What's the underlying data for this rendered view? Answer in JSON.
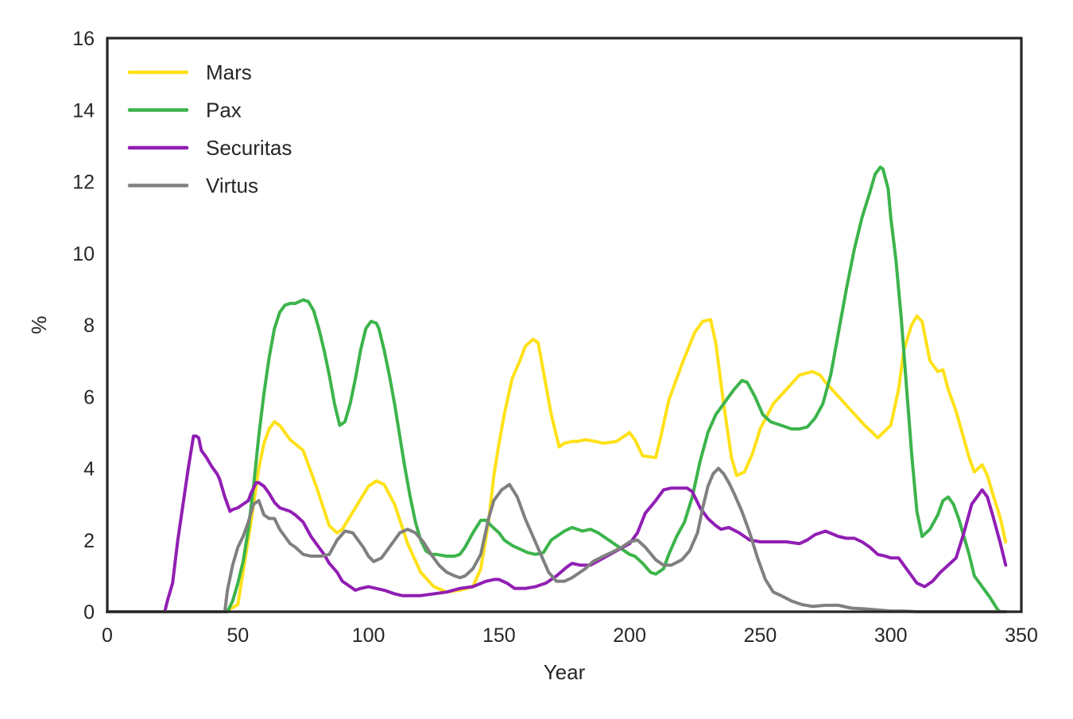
{
  "chart_data": {
    "type": "line",
    "title": "",
    "xlabel": "Year",
    "ylabel": "%",
    "xlim": [
      0,
      350
    ],
    "ylim": [
      0,
      16
    ],
    "xticks": [
      0,
      50,
      100,
      150,
      200,
      250,
      300,
      350
    ],
    "yticks": [
      0,
      2,
      4,
      6,
      8,
      10,
      12,
      14,
      16
    ],
    "grid": false,
    "legend_position": "top-left",
    "series": [
      {
        "name": "Mars",
        "color": "#FFE119",
        "x": [
          0,
          45,
          50,
          55,
          58,
          60,
          62,
          64,
          66,
          68,
          70,
          75,
          80,
          85,
          88,
          90,
          95,
          100,
          103,
          106,
          110,
          115,
          120,
          125,
          130,
          135,
          140,
          143,
          146,
          148,
          150,
          152,
          155,
          158,
          160,
          163,
          165,
          168,
          170,
          173,
          175,
          178,
          180,
          183,
          187,
          190,
          195,
          200,
          202,
          205,
          210,
          212,
          215,
          220,
          225,
          228,
          231,
          233,
          236,
          239,
          241,
          244,
          247,
          250,
          255,
          260,
          265,
          270,
          273,
          275,
          280,
          285,
          290,
          293,
          295,
          300,
          303,
          305,
          308,
          310,
          312,
          315,
          318,
          320,
          322,
          325,
          330,
          332,
          335,
          337,
          339,
          342,
          344
        ],
        "y": [
          0,
          0,
          0.2,
          2.5,
          4.0,
          4.7,
          5.1,
          5.3,
          5.2,
          5.0,
          4.8,
          4.5,
          3.5,
          2.4,
          2.2,
          2.3,
          2.9,
          3.5,
          3.65,
          3.55,
          3.0,
          1.9,
          1.1,
          0.7,
          0.55,
          0.6,
          0.7,
          1.2,
          2.5,
          3.8,
          4.7,
          5.5,
          6.5,
          7.0,
          7.4,
          7.6,
          7.5,
          6.3,
          5.5,
          4.6,
          4.7,
          4.75,
          4.75,
          4.8,
          4.75,
          4.7,
          4.75,
          5.0,
          4.8,
          4.35,
          4.3,
          4.9,
          5.9,
          6.9,
          7.8,
          8.1,
          8.15,
          7.5,
          5.8,
          4.3,
          3.8,
          3.9,
          4.4,
          5.1,
          5.8,
          6.2,
          6.6,
          6.7,
          6.6,
          6.4,
          6.0,
          5.6,
          5.2,
          5.0,
          4.85,
          5.2,
          6.2,
          7.3,
          8.0,
          8.25,
          8.1,
          7.0,
          6.7,
          6.75,
          6.2,
          5.6,
          4.3,
          3.9,
          4.1,
          3.8,
          3.3,
          2.6,
          1.95
        ]
      },
      {
        "name": "Pax",
        "color": "#3CB44B",
        "x": [
          0,
          46,
          48,
          50,
          52,
          54,
          56,
          58,
          60,
          62,
          64,
          66,
          68,
          70,
          72,
          75,
          77,
          79,
          81,
          83,
          85,
          87,
          89,
          91,
          93,
          95,
          97,
          99,
          101,
          103,
          104,
          106,
          108,
          110,
          112,
          114,
          116,
          118,
          120,
          122,
          124,
          126,
          130,
          133,
          135,
          137,
          140,
          143,
          145,
          147,
          150,
          152,
          155,
          158,
          161,
          164,
          167,
          170,
          172,
          175,
          178,
          180,
          182,
          185,
          188,
          190,
          193,
          195,
          198,
          200,
          202,
          205,
          208,
          210,
          213,
          215,
          218,
          221,
          224,
          227,
          230,
          233,
          236,
          240,
          243,
          245,
          248,
          251,
          254,
          258,
          262,
          265,
          268,
          271,
          274,
          277,
          280,
          283,
          286,
          289,
          292,
          294,
          296,
          297,
          299,
          300,
          302,
          304,
          306,
          308,
          310,
          312,
          315,
          318,
          320,
          322,
          324,
          326,
          328,
          330,
          332,
          335,
          338,
          341,
          342
        ],
        "y": [
          0,
          0,
          0.3,
          0.8,
          1.4,
          2.3,
          3.5,
          4.9,
          6.1,
          7.1,
          7.9,
          8.35,
          8.55,
          8.6,
          8.6,
          8.7,
          8.65,
          8.4,
          7.9,
          7.3,
          6.6,
          5.8,
          5.2,
          5.3,
          5.8,
          6.5,
          7.3,
          7.9,
          8.1,
          8.05,
          7.9,
          7.3,
          6.6,
          5.8,
          4.9,
          4.0,
          3.2,
          2.5,
          2.0,
          1.7,
          1.6,
          1.6,
          1.55,
          1.55,
          1.6,
          1.8,
          2.2,
          2.55,
          2.55,
          2.4,
          2.2,
          2.0,
          1.85,
          1.75,
          1.65,
          1.6,
          1.65,
          2.0,
          2.1,
          2.25,
          2.35,
          2.3,
          2.25,
          2.3,
          2.2,
          2.1,
          1.95,
          1.85,
          1.7,
          1.6,
          1.55,
          1.35,
          1.1,
          1.05,
          1.2,
          1.6,
          2.1,
          2.5,
          3.2,
          4.2,
          5.0,
          5.5,
          5.8,
          6.2,
          6.45,
          6.4,
          6.0,
          5.5,
          5.3,
          5.2,
          5.1,
          5.1,
          5.15,
          5.4,
          5.8,
          6.6,
          7.8,
          9.0,
          10.1,
          11.0,
          11.7,
          12.2,
          12.4,
          12.35,
          11.8,
          11.0,
          9.8,
          8.2,
          6.3,
          4.4,
          2.8,
          2.1,
          2.3,
          2.7,
          3.1,
          3.2,
          3.0,
          2.6,
          2.1,
          1.6,
          1.0,
          0.7,
          0.4,
          0.05,
          0
        ]
      },
      {
        "name": "Securitas",
        "color": "#911EB4",
        "x": [
          0,
          22,
          23,
          25,
          27,
          29,
          31,
          33,
          34,
          35,
          36,
          38,
          40,
          42,
          43,
          45,
          47,
          48,
          50,
          52,
          54,
          55,
          57,
          58,
          60,
          62,
          64,
          66,
          68,
          70,
          72,
          75,
          78,
          80,
          83,
          85,
          88,
          90,
          93,
          95,
          97,
          100,
          103,
          106,
          110,
          113,
          116,
          120,
          125,
          130,
          135,
          140,
          145,
          148,
          150,
          153,
          156,
          160,
          164,
          168,
          172,
          176,
          178,
          181,
          185,
          190,
          195,
          200,
          203,
          206,
          210,
          213,
          216,
          220,
          222,
          224,
          227,
          230,
          233,
          235,
          238,
          242,
          246,
          250,
          255,
          260,
          265,
          268,
          271,
          275,
          280,
          283,
          286,
          289,
          292,
          295,
          298,
          300,
          303,
          305,
          308,
          310,
          313,
          316,
          319,
          322,
          325,
          328,
          331,
          333,
          335,
          337,
          339,
          342,
          344
        ],
        "y": [
          0,
          0,
          0.3,
          0.8,
          2.0,
          3.0,
          4.0,
          4.9,
          4.9,
          4.85,
          4.5,
          4.3,
          4.05,
          3.85,
          3.7,
          3.2,
          2.8,
          2.85,
          2.9,
          3.0,
          3.1,
          3.3,
          3.6,
          3.6,
          3.5,
          3.3,
          3.05,
          2.9,
          2.85,
          2.8,
          2.7,
          2.5,
          2.1,
          1.9,
          1.6,
          1.35,
          1.1,
          0.85,
          0.7,
          0.6,
          0.65,
          0.7,
          0.65,
          0.6,
          0.5,
          0.45,
          0.45,
          0.45,
          0.5,
          0.55,
          0.65,
          0.7,
          0.85,
          0.9,
          0.9,
          0.8,
          0.65,
          0.65,
          0.7,
          0.8,
          1.0,
          1.25,
          1.35,
          1.3,
          1.3,
          1.5,
          1.7,
          1.9,
          2.2,
          2.75,
          3.1,
          3.4,
          3.45,
          3.45,
          3.45,
          3.35,
          2.9,
          2.6,
          2.4,
          2.3,
          2.35,
          2.2,
          2.0,
          1.95,
          1.95,
          1.95,
          1.9,
          2.0,
          2.15,
          2.25,
          2.1,
          2.05,
          2.05,
          1.95,
          1.8,
          1.6,
          1.55,
          1.5,
          1.5,
          1.3,
          1.0,
          0.8,
          0.7,
          0.85,
          1.1,
          1.3,
          1.5,
          2.2,
          3.0,
          3.2,
          3.4,
          3.2,
          2.7,
          1.9,
          1.3
        ]
      },
      {
        "name": "Virtus",
        "color": "#808080",
        "x": [
          0,
          45,
          46,
          48,
          50,
          52,
          54,
          56,
          58,
          60,
          62,
          64,
          66,
          68,
          70,
          72,
          75,
          78,
          82,
          85,
          88,
          91,
          94,
          96,
          98,
          100,
          102,
          105,
          108,
          110,
          112,
          115,
          118,
          121,
          124,
          127,
          130,
          133,
          135,
          137,
          140,
          143,
          146,
          148,
          151,
          154,
          157,
          160,
          163,
          166,
          169,
          172,
          175,
          178,
          180,
          183,
          186,
          190,
          193,
          197,
          200,
          203,
          206,
          210,
          213,
          216,
          220,
          223,
          226,
          228,
          230,
          232,
          234,
          236,
          238,
          240,
          243,
          246,
          249,
          252,
          255,
          258,
          262,
          266,
          270,
          275,
          280,
          285,
          290,
          295,
          300,
          305,
          310,
          320,
          330,
          340,
          344
        ],
        "y": [
          0,
          0,
          0.6,
          1.3,
          1.8,
          2.1,
          2.5,
          3.0,
          3.1,
          2.7,
          2.6,
          2.6,
          2.3,
          2.1,
          1.9,
          1.8,
          1.6,
          1.55,
          1.55,
          1.6,
          2.0,
          2.25,
          2.2,
          2.0,
          1.8,
          1.55,
          1.4,
          1.5,
          1.8,
          2.0,
          2.2,
          2.3,
          2.2,
          1.95,
          1.6,
          1.3,
          1.1,
          1.0,
          0.95,
          1.0,
          1.2,
          1.6,
          2.6,
          3.1,
          3.4,
          3.55,
          3.2,
          2.6,
          2.1,
          1.6,
          1.1,
          0.85,
          0.85,
          0.95,
          1.05,
          1.2,
          1.4,
          1.55,
          1.65,
          1.8,
          1.95,
          2.0,
          1.8,
          1.45,
          1.3,
          1.3,
          1.45,
          1.7,
          2.2,
          2.9,
          3.5,
          3.85,
          4.0,
          3.85,
          3.6,
          3.3,
          2.8,
          2.2,
          1.5,
          0.9,
          0.55,
          0.45,
          0.3,
          0.2,
          0.15,
          0.18,
          0.18,
          0.1,
          0.08,
          0.05,
          0.02,
          0.02,
          0,
          0,
          0,
          0,
          0
        ]
      }
    ]
  }
}
